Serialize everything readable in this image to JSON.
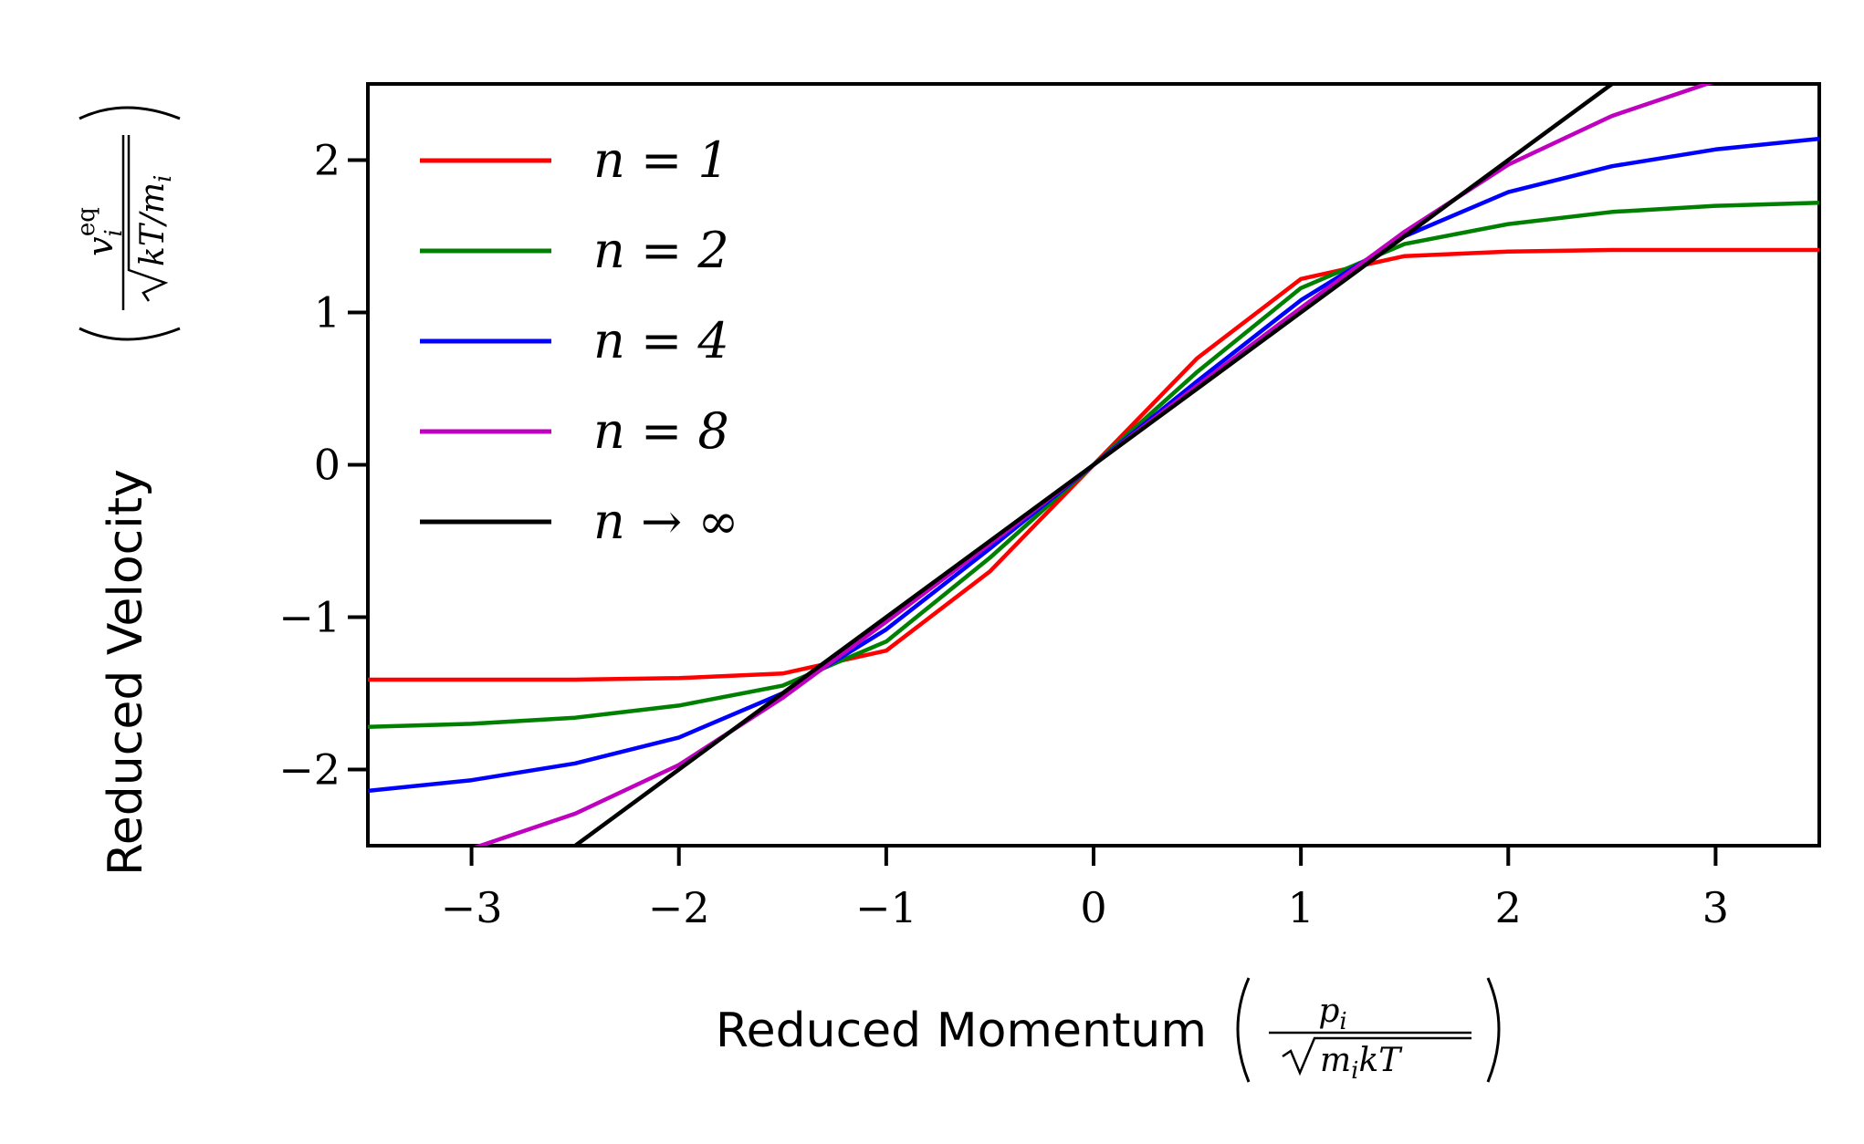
{
  "chart_data": {
    "type": "line",
    "xlabel": "Reduced Momentum",
    "ylabel": "Reduced Velocity",
    "xlim": [
      -3.5,
      3.5
    ],
    "ylim": [
      -2.5,
      2.5
    ],
    "xticks": [
      -3,
      -2,
      -1,
      0,
      1,
      2,
      3
    ],
    "yticks": [
      -2,
      -1,
      0,
      1,
      2
    ],
    "xtick_labels": [
      "−3",
      "−2",
      "−1",
      "0",
      "1",
      "2",
      "3"
    ],
    "ytick_labels": [
      "−2",
      "−1",
      "0",
      "1",
      "2"
    ],
    "grid": false,
    "legend_position": "top-left",
    "x": [
      -3.5,
      -3.0,
      -2.5,
      -2.0,
      -1.5,
      -1.0,
      -0.5,
      0.0,
      0.5,
      1.0,
      1.5,
      2.0,
      2.5,
      3.0,
      3.5
    ],
    "series": [
      {
        "name": "n = 1",
        "color": "#ff0000",
        "values": [
          -1.41,
          -1.41,
          -1.41,
          -1.4,
          -1.37,
          -1.22,
          -0.7,
          0.0,
          0.7,
          1.22,
          1.37,
          1.4,
          1.41,
          1.41,
          1.41
        ]
      },
      {
        "name": "n = 2",
        "color": "#008000",
        "values": [
          -1.72,
          -1.7,
          -1.66,
          -1.58,
          -1.45,
          -1.16,
          -0.61,
          0.0,
          0.61,
          1.16,
          1.45,
          1.58,
          1.66,
          1.7,
          1.72
        ]
      },
      {
        "name": "n = 4",
        "color": "#0000ff",
        "values": [
          -2.14,
          -2.07,
          -1.96,
          -1.79,
          -1.5,
          -1.08,
          -0.55,
          0.0,
          0.55,
          1.08,
          1.5,
          1.79,
          1.96,
          2.07,
          2.14
        ]
      },
      {
        "name": "n = 8",
        "color": "#bf00bf",
        "values": [
          -2.71,
          -2.52,
          -2.29,
          -1.97,
          -1.53,
          -1.03,
          -0.52,
          0.0,
          0.52,
          1.03,
          1.53,
          1.97,
          2.29,
          2.52,
          2.71
        ]
      },
      {
        "name": "n → ∞",
        "color": "#000000",
        "values": [
          -3.5,
          -3.0,
          -2.5,
          -2.0,
          -1.5,
          -1.0,
          -0.5,
          0.0,
          0.5,
          1.0,
          1.5,
          2.0,
          2.5,
          3.0,
          3.5
        ]
      }
    ]
  }
}
